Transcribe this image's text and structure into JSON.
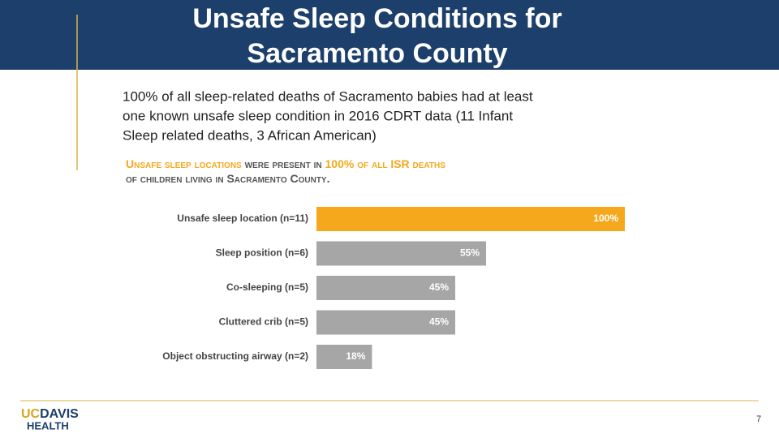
{
  "title": [
    "Unsafe Sleep Conditions for",
    "Sacramento County"
  ],
  "body": [
    "100% of all sleep-related deaths of Sacramento babies had at least",
    "one known unsafe sleep condition in 2016 CDRT data (11 Infant",
    "Sleep related deaths, 3 African American)"
  ],
  "logo": {
    "uc": "UC",
    "davis": "DAVIS",
    "health": "HEALTH"
  },
  "page_number": "7",
  "chart_data": {
    "type": "bar",
    "orientation": "horizontal",
    "title": [
      "Unsafe sleep locations",
      " were present in ",
      "100% of all ISR deaths",
      "of children living in Sacramento County."
    ],
    "title_colors": [
      "#f5a81c",
      "#555555",
      "#f5a81c",
      "#555555"
    ],
    "categories": [
      "Unsafe sleep location (n=11)",
      "Sleep position (n=6)",
      "Co-sleeping (n=5)",
      "Cluttered crib (n=5)",
      "Object obstructing airway (n=2)"
    ],
    "values": [
      100,
      55,
      45,
      45,
      18
    ],
    "value_labels": [
      "100%",
      "55%",
      "45%",
      "45%",
      "18%"
    ],
    "colors": [
      "#f5a81c",
      "#a6a6a6",
      "#a6a6a6",
      "#a6a6a6",
      "#a6a6a6"
    ]
  }
}
